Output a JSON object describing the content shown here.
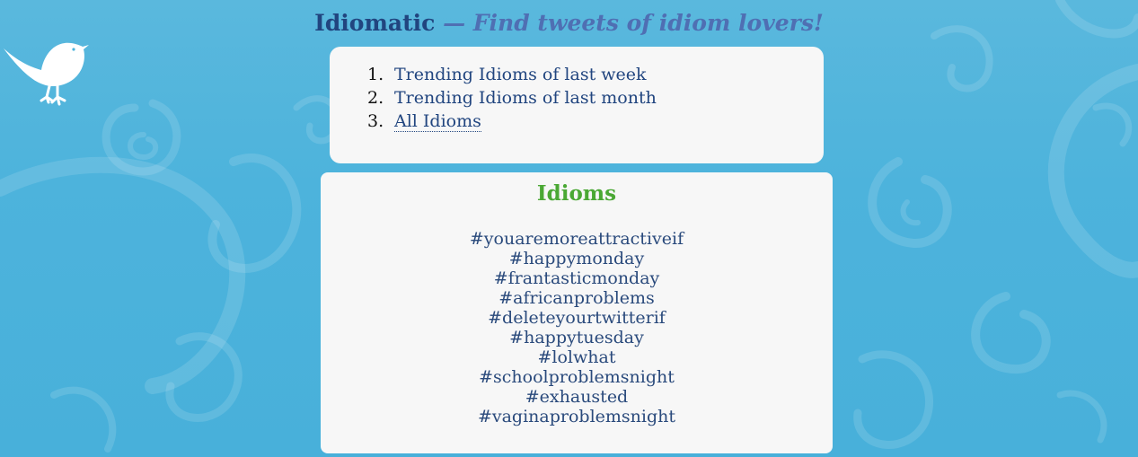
{
  "header": {
    "app_name": "Idiomatic",
    "tagline": " — Find tweets of idiom lovers!"
  },
  "nav": {
    "items": [
      {
        "number": "1.",
        "label": "Trending Idioms of last week",
        "active": false
      },
      {
        "number": "2.",
        "label": "Trending Idioms of last month",
        "active": false
      },
      {
        "number": "3.",
        "label": "All Idioms",
        "active": true
      }
    ]
  },
  "idioms": {
    "heading": "Idioms",
    "list": [
      "#youaremoreattractiveif",
      "#happymonday",
      "#frantasticmonday",
      "#africanproblems",
      "#deleteyourtwitterif",
      "#happytuesday",
      "#lolwhat",
      "#schoolproblemsnight",
      "#exhausted",
      "#vaginaproblemsnight"
    ]
  },
  "colors": {
    "background": "#4db3dc",
    "title": "#21457f",
    "tagline": "#4f6fb3",
    "heading": "#4aa834",
    "panel": "#f7f7f7"
  },
  "icons": {
    "logo": "bird-icon"
  }
}
